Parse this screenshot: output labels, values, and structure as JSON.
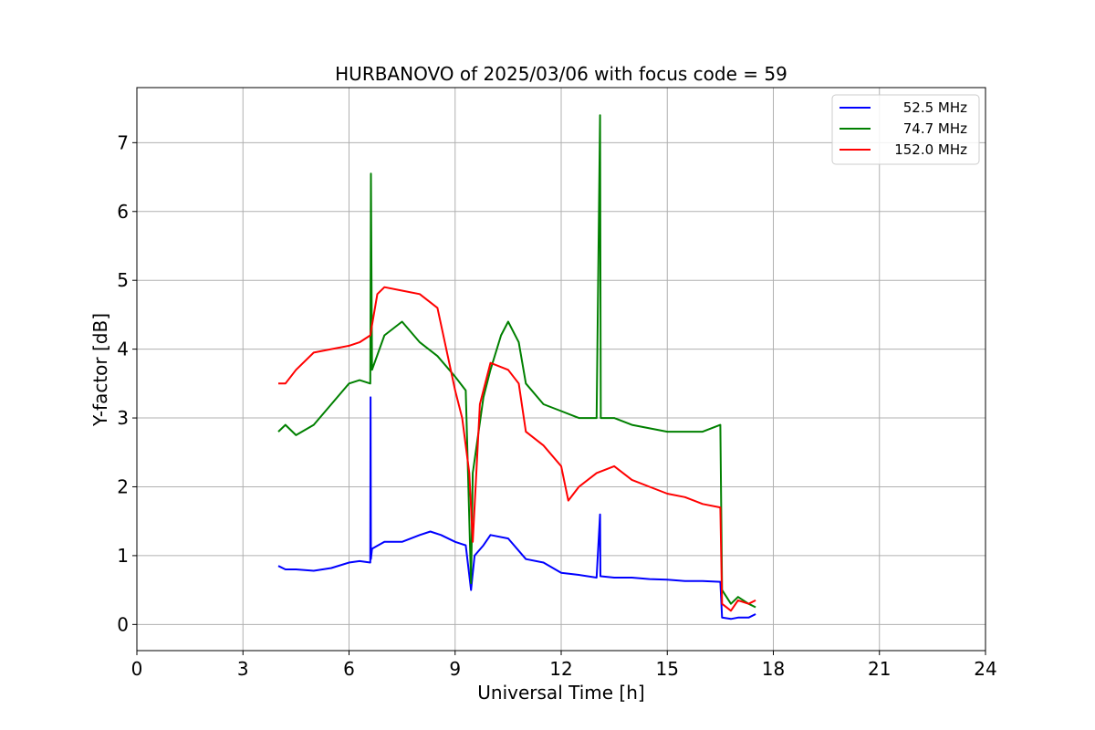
{
  "chart_data": {
    "type": "line",
    "title": "HURBANOVO of 2025/03/06 with focus code = 59",
    "xlabel": "Universal Time [h]",
    "ylabel": "Y-factor [dB]",
    "xlim": [
      0,
      24
    ],
    "ylim": [
      -0.38,
      7.8
    ],
    "xticks": [
      "0",
      "3",
      "6",
      "9",
      "12",
      "15",
      "18",
      "21",
      "24"
    ],
    "yticks": [
      "0",
      "1",
      "2",
      "3",
      "4",
      "5",
      "6",
      "7"
    ],
    "grid": true,
    "legend_position": "top-right",
    "series": [
      {
        "name": "52.5 MHz",
        "color": "#0000ff",
        "x": [
          4.0,
          4.2,
          4.5,
          5.0,
          5.5,
          6.0,
          6.3,
          6.6,
          6.61,
          6.62,
          6.65,
          7.0,
          7.5,
          8.0,
          8.3,
          8.6,
          9.0,
          9.3,
          9.45,
          9.55,
          9.8,
          10.0,
          10.5,
          11.0,
          11.5,
          12.0,
          12.5,
          13.0,
          13.1,
          13.11,
          13.12,
          13.5,
          14.0,
          14.5,
          15.0,
          15.5,
          16.0,
          16.5,
          16.55,
          16.8,
          17.0,
          17.3,
          17.5
        ],
        "y": [
          0.85,
          0.8,
          0.8,
          0.78,
          0.82,
          0.9,
          0.92,
          0.9,
          3.3,
          0.95,
          1.1,
          1.2,
          1.2,
          1.3,
          1.35,
          1.3,
          1.2,
          1.15,
          0.5,
          1.0,
          1.15,
          1.3,
          1.25,
          0.95,
          0.9,
          0.75,
          0.72,
          0.68,
          1.6,
          0.7,
          0.7,
          0.68,
          0.68,
          0.66,
          0.65,
          0.63,
          0.63,
          0.62,
          0.1,
          0.08,
          0.1,
          0.1,
          0.15
        ]
      },
      {
        "name": "74.7 MHz",
        "color": "#008000",
        "x": [
          4.0,
          4.2,
          4.5,
          5.0,
          5.5,
          6.0,
          6.3,
          6.6,
          6.62,
          6.65,
          7.0,
          7.5,
          8.0,
          8.5,
          9.0,
          9.3,
          9.45,
          9.5,
          9.8,
          10.0,
          10.3,
          10.5,
          10.8,
          11.0,
          11.5,
          12.0,
          12.5,
          13.0,
          13.1,
          13.12,
          13.5,
          14.0,
          14.5,
          15.0,
          15.5,
          16.0,
          16.5,
          16.55,
          16.8,
          17.0,
          17.3,
          17.5
        ],
        "y": [
          2.8,
          2.9,
          2.75,
          2.9,
          3.2,
          3.5,
          3.55,
          3.5,
          6.55,
          3.7,
          4.2,
          4.4,
          4.1,
          3.9,
          3.6,
          3.4,
          0.6,
          2.2,
          3.3,
          3.7,
          4.2,
          4.4,
          4.1,
          3.5,
          3.2,
          3.1,
          3.0,
          3.0,
          7.4,
          3.0,
          3.0,
          2.9,
          2.85,
          2.8,
          2.8,
          2.8,
          2.9,
          0.5,
          0.3,
          0.4,
          0.3,
          0.25
        ]
      },
      {
        "name": "152.0 MHz",
        "color": "#ff0000",
        "x": [
          4.0,
          4.2,
          4.5,
          5.0,
          5.5,
          6.0,
          6.3,
          6.6,
          6.8,
          7.0,
          7.5,
          8.0,
          8.5,
          9.0,
          9.2,
          9.4,
          9.5,
          9.7,
          10.0,
          10.5,
          10.8,
          11.0,
          11.5,
          12.0,
          12.2,
          12.5,
          13.0,
          13.5,
          14.0,
          14.5,
          15.0,
          15.5,
          16.0,
          16.5,
          16.55,
          16.8,
          17.0,
          17.3,
          17.5
        ],
        "y": [
          3.5,
          3.5,
          3.7,
          3.95,
          4.0,
          4.05,
          4.1,
          4.2,
          4.8,
          4.9,
          4.85,
          4.8,
          4.6,
          3.4,
          3.0,
          2.2,
          1.2,
          3.2,
          3.8,
          3.7,
          3.5,
          2.8,
          2.6,
          2.3,
          1.8,
          2.0,
          2.2,
          2.3,
          2.1,
          2.0,
          1.9,
          1.85,
          1.75,
          1.7,
          0.3,
          0.2,
          0.35,
          0.3,
          0.35
        ]
      }
    ]
  }
}
